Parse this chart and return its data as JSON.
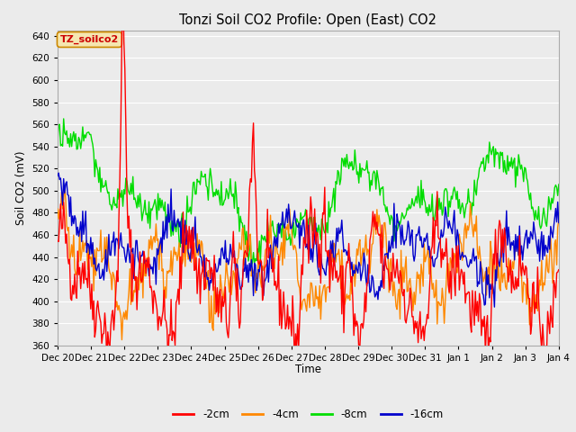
{
  "title": "Tonzi Soil CO2 Profile: Open (East) CO2",
  "ylabel": "Soil CO2 (mV)",
  "xlabel": "Time",
  "annotation": "TZ_soilco2",
  "annotation_color": "#cc0000",
  "annotation_bg": "#f5e6b0",
  "annotation_border": "#cc8800",
  "ylim": [
    360,
    645
  ],
  "yticks": [
    360,
    380,
    400,
    420,
    440,
    460,
    480,
    500,
    520,
    540,
    560,
    580,
    600,
    620,
    640
  ],
  "series_colors": [
    "#ff0000",
    "#ff8800",
    "#00dd00",
    "#0000cc"
  ],
  "series_labels": [
    "-2cm",
    "-4cm",
    "-8cm",
    "-16cm"
  ],
  "bg_color": "#ebebeb",
  "plot_bg_color": "#ebebeb",
  "grid_color": "#ffffff",
  "n_points": 500,
  "seed": 42
}
